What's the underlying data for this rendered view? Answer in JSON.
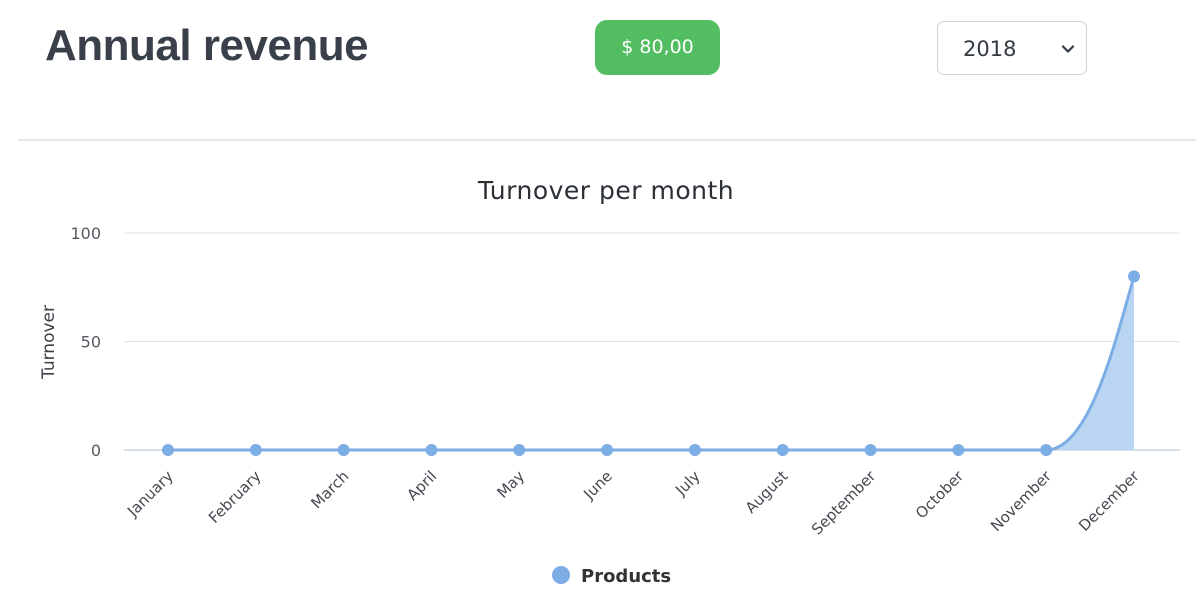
{
  "header": {
    "title": "Annual revenue",
    "total_badge": "$ 80,00",
    "year_select": {
      "value": "2018"
    }
  },
  "colors": {
    "badge": "#52bd61",
    "series": "#7cade5",
    "area": "#bad5f2",
    "grid": "#dde3ea",
    "title_text": "#3a404a"
  },
  "chart_data": {
    "type": "area",
    "title": "Turnover per month",
    "ylabel": "Turnover",
    "xlabel": "",
    "categories": [
      "January",
      "February",
      "March",
      "April",
      "May",
      "June",
      "July",
      "August",
      "September",
      "October",
      "November",
      "December"
    ],
    "series": [
      {
        "name": "Products",
        "values": [
          0,
          0,
          0,
          0,
          0,
          0,
          0,
          0,
          0,
          0,
          0,
          80
        ]
      }
    ],
    "ylim": [
      0,
      100
    ],
    "yticks": [
      0,
      50,
      100
    ],
    "grid": true,
    "legend_position": "bottom-center",
    "curve": "smooth"
  }
}
